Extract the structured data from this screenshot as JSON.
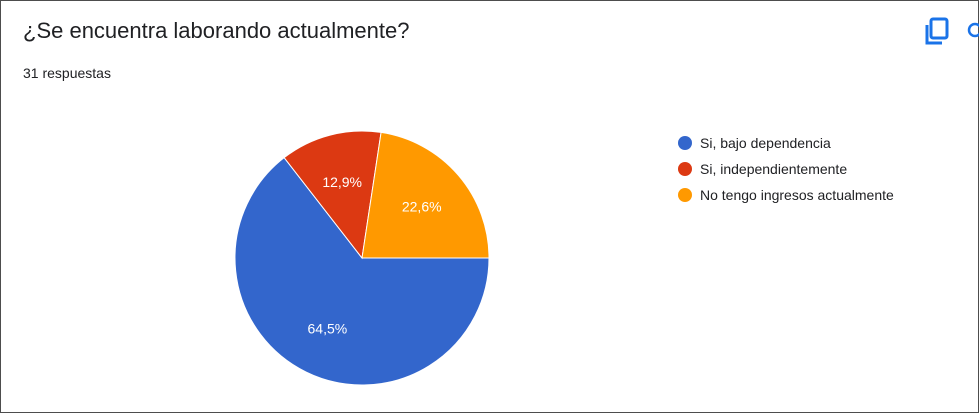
{
  "header": {
    "title": "¿Se encuentra laborando actualmente?",
    "responses": "31 respuestas"
  },
  "toolbar": {
    "copy_icon": "copy-icon",
    "search_icon": "search-icon",
    "accent_color": "#1a73e8"
  },
  "chart_data": {
    "type": "pie",
    "categories": [
      "Si, bajo dependencia",
      "Si, independientemente",
      "No tengo ingresos actualmente"
    ],
    "values": [
      64.5,
      12.9,
      22.6
    ],
    "labels": [
      "64,5%",
      "12,9%",
      "22,6%"
    ],
    "colors": [
      "#3366cc",
      "#dc3912",
      "#ff9900"
    ],
    "legend_position": "right"
  }
}
